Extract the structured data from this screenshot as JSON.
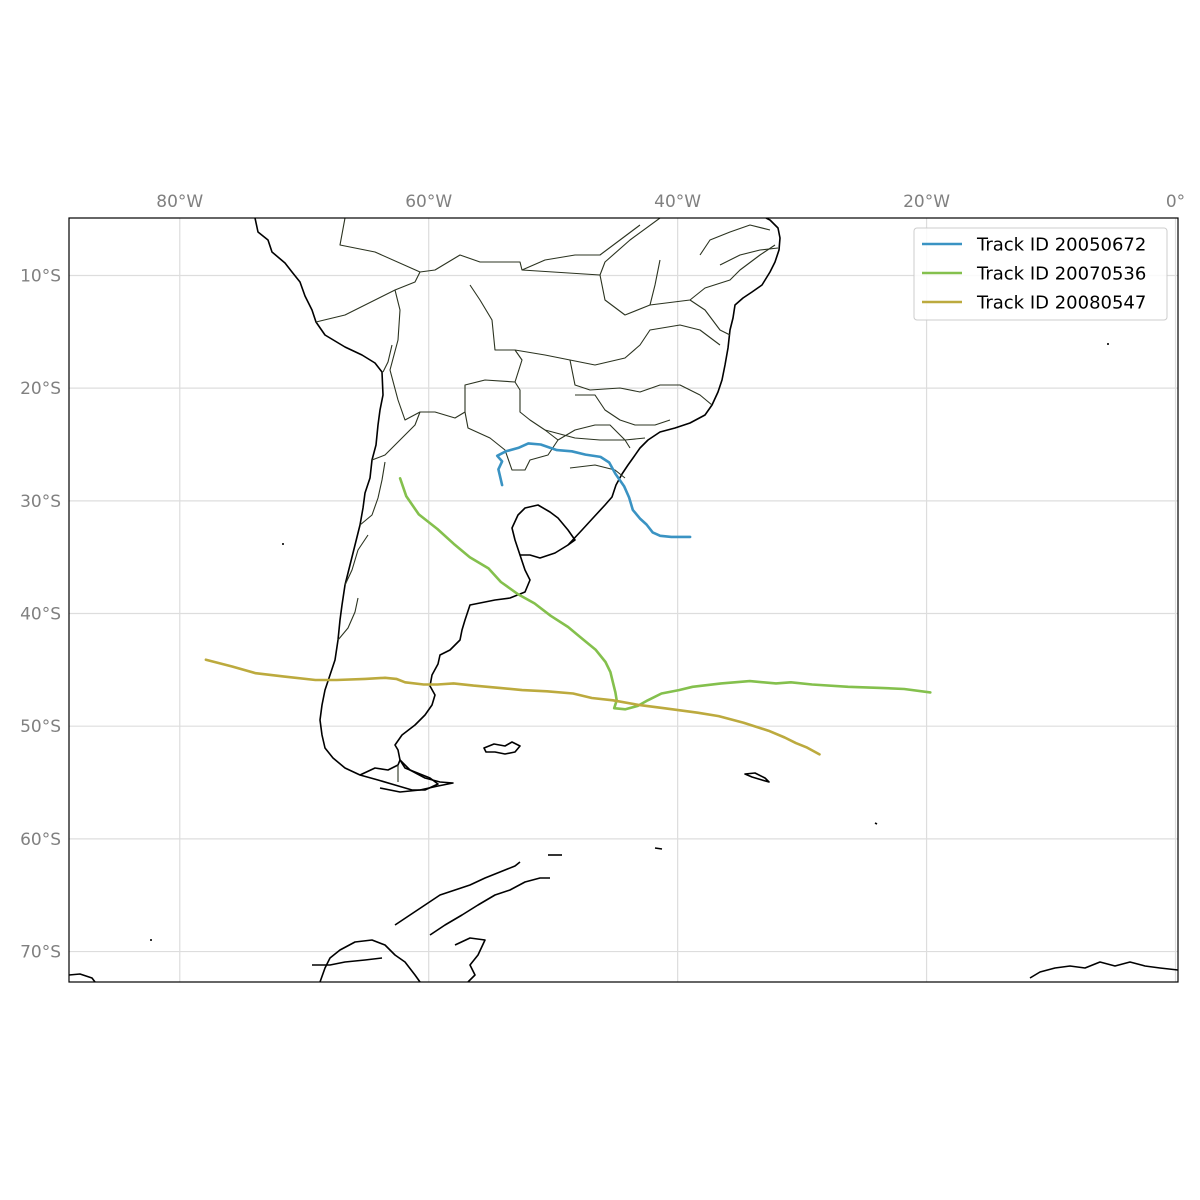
{
  "map": {
    "projection": "PlateCarree",
    "extent": {
      "lon_min": -88.9,
      "lon_max": 0.2,
      "lat_min": -72.7,
      "lat_max": -4.9
    },
    "x_ticks": [
      {
        "value": -80,
        "label": "80°W"
      },
      {
        "value": -60,
        "label": "60°W"
      },
      {
        "value": -40,
        "label": "40°W"
      },
      {
        "value": -20,
        "label": "20°W"
      },
      {
        "value": 0,
        "label": "0°"
      }
    ],
    "y_ticks": [
      {
        "value": -10,
        "label": "10°S"
      },
      {
        "value": -20,
        "label": "20°S"
      },
      {
        "value": -30,
        "label": "30°S"
      },
      {
        "value": -40,
        "label": "40°S"
      },
      {
        "value": -50,
        "label": "50°S"
      },
      {
        "value": -60,
        "label": "60°S"
      },
      {
        "value": -70,
        "label": "70°S"
      }
    ],
    "grid": true,
    "legend_position": "top-right"
  },
  "chart_data": {
    "type": "line",
    "series": [
      {
        "name": "Track ID 20050672",
        "color": "#3a93c3",
        "points": [
          [
            -54.1,
            -28.6
          ],
          [
            -54.4,
            -27.2
          ],
          [
            -54.1,
            -26.5
          ],
          [
            -54.5,
            -26.0
          ],
          [
            -53.8,
            -25.6
          ],
          [
            -52.8,
            -25.3
          ],
          [
            -52.0,
            -24.9
          ],
          [
            -51.0,
            -25.0
          ],
          [
            -49.7,
            -25.5
          ],
          [
            -48.5,
            -25.6
          ],
          [
            -47.4,
            -25.9
          ],
          [
            -46.2,
            -26.1
          ],
          [
            -45.5,
            -26.6
          ],
          [
            -45.0,
            -27.6
          ],
          [
            -44.3,
            -28.7
          ],
          [
            -43.9,
            -29.7
          ],
          [
            -43.6,
            -30.8
          ],
          [
            -43.0,
            -31.6
          ],
          [
            -42.5,
            -32.1
          ],
          [
            -42.0,
            -32.8
          ],
          [
            -41.4,
            -33.1
          ],
          [
            -40.5,
            -33.2
          ],
          [
            -39.7,
            -33.2
          ],
          [
            -39.0,
            -33.2
          ]
        ]
      },
      {
        "name": "Track ID 20070536",
        "color": "#84c04d",
        "points": [
          [
            -62.3,
            -28.0
          ],
          [
            -61.8,
            -29.6
          ],
          [
            -60.8,
            -31.2
          ],
          [
            -59.3,
            -32.5
          ],
          [
            -58.0,
            -33.8
          ],
          [
            -56.7,
            -35.0
          ],
          [
            -55.2,
            -36.0
          ],
          [
            -54.2,
            -37.2
          ],
          [
            -52.8,
            -38.3
          ],
          [
            -51.5,
            -39.1
          ],
          [
            -50.2,
            -40.2
          ],
          [
            -48.8,
            -41.2
          ],
          [
            -47.6,
            -42.3
          ],
          [
            -46.6,
            -43.2
          ],
          [
            -45.8,
            -44.3
          ],
          [
            -45.4,
            -45.2
          ],
          [
            -45.2,
            -46.1
          ],
          [
            -45.0,
            -47.0
          ],
          [
            -44.9,
            -47.7
          ],
          [
            -45.1,
            -48.4
          ],
          [
            -44.2,
            -48.5
          ],
          [
            -43.2,
            -48.2
          ],
          [
            -42.4,
            -47.7
          ],
          [
            -41.3,
            -47.1
          ],
          [
            -39.9,
            -46.8
          ],
          [
            -38.8,
            -46.5
          ],
          [
            -36.5,
            -46.2
          ],
          [
            -34.2,
            -46.0
          ],
          [
            -32.1,
            -46.2
          ],
          [
            -30.9,
            -46.1
          ],
          [
            -29.2,
            -46.3
          ],
          [
            -26.3,
            -46.5
          ],
          [
            -23.7,
            -46.6
          ],
          [
            -21.8,
            -46.7
          ],
          [
            -19.7,
            -47.0
          ]
        ]
      },
      {
        "name": "Track ID 20080547",
        "color": "#bcaa3e",
        "points": [
          [
            -77.9,
            -44.1
          ],
          [
            -75.8,
            -44.7
          ],
          [
            -73.9,
            -45.3
          ],
          [
            -71.6,
            -45.6
          ],
          [
            -69.1,
            -45.9
          ],
          [
            -67.4,
            -45.9
          ],
          [
            -65.1,
            -45.8
          ],
          [
            -63.5,
            -45.7
          ],
          [
            -62.6,
            -45.8
          ],
          [
            -61.9,
            -46.1
          ],
          [
            -60.4,
            -46.3
          ],
          [
            -59.3,
            -46.3
          ],
          [
            -58.0,
            -46.2
          ],
          [
            -56.4,
            -46.4
          ],
          [
            -54.3,
            -46.6
          ],
          [
            -52.5,
            -46.8
          ],
          [
            -50.5,
            -46.9
          ],
          [
            -48.4,
            -47.1
          ],
          [
            -46.9,
            -47.5
          ],
          [
            -45.2,
            -47.7
          ],
          [
            -43.2,
            -48.1
          ],
          [
            -41.1,
            -48.4
          ],
          [
            -38.4,
            -48.8
          ],
          [
            -36.7,
            -49.1
          ],
          [
            -34.7,
            -49.7
          ],
          [
            -32.7,
            -50.4
          ],
          [
            -31.4,
            -51.0
          ],
          [
            -30.5,
            -51.5
          ],
          [
            -29.6,
            -51.9
          ],
          [
            -28.6,
            -52.5
          ]
        ]
      }
    ]
  }
}
